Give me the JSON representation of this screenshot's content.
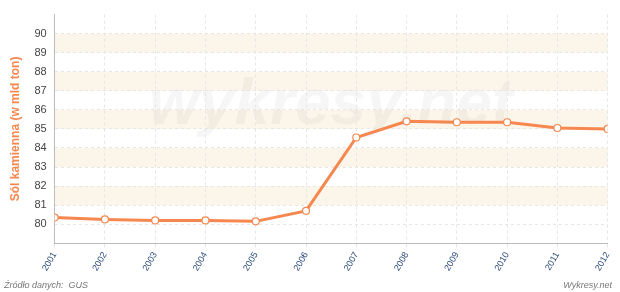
{
  "chart_data": {
    "type": "line",
    "y_label": "Sól kamienna (w mld ton)",
    "categories": [
      "2001",
      "2002",
      "2003",
      "2004",
      "2005",
      "2006",
      "2007",
      "2008",
      "2009",
      "2010",
      "2011",
      "2012"
    ],
    "values": [
      80.35,
      80.25,
      80.2,
      80.2,
      80.15,
      80.7,
      84.55,
      85.4,
      85.35,
      85.35,
      85.05,
      85.0
    ],
    "color": "#f5874f",
    "marker": "circle",
    "ylim": [
      79,
      91
    ],
    "yticks": [
      80,
      81,
      82,
      83,
      84,
      85,
      86,
      87,
      88,
      89,
      90
    ],
    "grid": true,
    "annotations": [
      "Źródło danych:  GUS",
      "Wykresy.net",
      "wykresy.net"
    ]
  }
}
